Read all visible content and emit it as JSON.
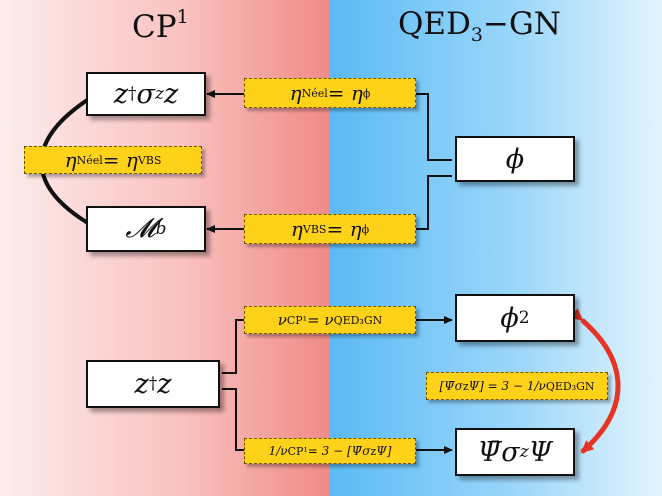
{
  "headers": {
    "left": "CP",
    "left_sup": "1",
    "right_a": "QED",
    "right_sub": "3",
    "right_b": "−GN"
  },
  "boxes": {
    "neel_a": "z",
    "neel_dag": "†",
    "neel_b": "σ",
    "neel_sub": "z",
    "neel_c": "z",
    "monopole": "𝓜",
    "monopole_sub": "b",
    "phi": "ϕ",
    "phi2": "ϕ",
    "phi2_sup": "2",
    "zz_a": "z",
    "zz_dag": "†",
    "zz_b": "z",
    "psi": "Ψ̄σ",
    "psi_sub": "z",
    "psi_b": "Ψ"
  },
  "tags": {
    "left_mid": {
      "a": "η",
      "s1": "Néel",
      "b": " = η",
      "s2": "VBS"
    },
    "top": {
      "a": "η",
      "s1": "Néel",
      "b": " = η",
      "s2": "ϕ"
    },
    "vbs": {
      "a": "η",
      "s1": "VBS",
      "b": " = η",
      "s2": "ϕ"
    },
    "nu": {
      "a": "ν",
      "s1": "CP¹",
      "b": " = ν",
      "s2": "QED₃GN"
    },
    "inv_nu": {
      "a": "1/ν",
      "s1": "CP¹",
      "b": " = 3 − [Ψ̄σ",
      "s2": "z",
      "c": "Ψ]"
    },
    "right_mid": {
      "a": "[Ψ̄σ",
      "s1": "z",
      "b": "Ψ] = 3 − 1/ν",
      "s2": "QED₃GN"
    }
  },
  "colors": {
    "left_panel": "#f18a86",
    "right_panel": "#5bbaf5",
    "tag_fill": "#ffd21a",
    "red_arrow": "#e53424",
    "line": "#111111"
  }
}
